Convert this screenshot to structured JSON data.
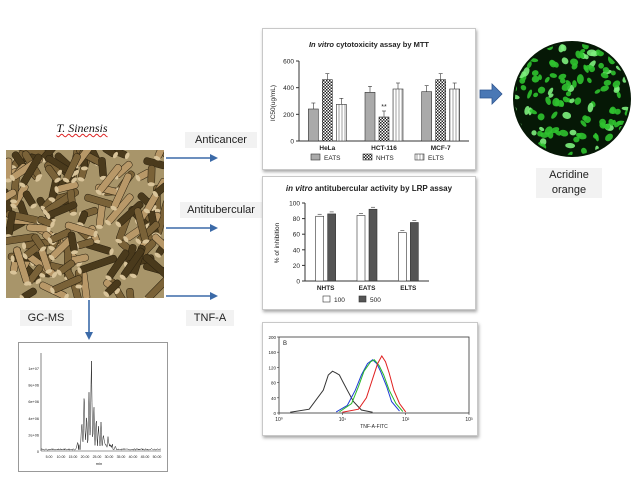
{
  "plant": {
    "name": "T. Sinensis",
    "colors": {
      "bg": "#a8956a",
      "stick_dark": "#4a3a1c",
      "stick_light": "#b89868",
      "stick_mid": "#7a6238"
    }
  },
  "labels": {
    "anticancer": "Anticancer",
    "antitubercular": "Antitubercular",
    "tnf": "TNF-A",
    "gcms": "GC-MS",
    "acridine_line1": "Acridine",
    "acridine_line2": "orange"
  },
  "arrow_color": "#3b6aa8",
  "cell_image": {
    "bg": "#061806",
    "cell": "#2fc22f",
    "cell_bright": "#7df07d"
  },
  "chart_data": [
    {
      "type": "bar",
      "title_italic": "In vitro",
      "title_rest": " cytotoxicity assay by MTT",
      "ylabel": "IC50(ug/mL)",
      "ylim": [
        0,
        600
      ],
      "yticks": [
        "0",
        "200",
        "400",
        "600"
      ],
      "categories": [
        "HeLa",
        "HCT-116",
        "MCF-7"
      ],
      "series": [
        {
          "name": "EATS",
          "values": [
            240,
            365,
            370
          ]
        },
        {
          "name": "NHTS",
          "values": [
            460,
            180,
            460
          ]
        },
        {
          "name": "ELTS",
          "values": [
            275,
            390,
            390
          ]
        }
      ],
      "annotation": "**"
    },
    {
      "type": "bar",
      "title_italic": "in vitro",
      "title_rest": " antitubercular activity by LRP assay",
      "ylabel": "% of inhibition",
      "ylim": [
        0,
        100
      ],
      "yticks": [
        "0",
        "20",
        "40",
        "60",
        "80",
        "100"
      ],
      "categories": [
        "NHTS",
        "EATS",
        "ELTS"
      ],
      "series": [
        {
          "name": "100",
          "values": [
            83,
            84,
            62
          ]
        },
        {
          "name": "500",
          "values": [
            86,
            92,
            75
          ]
        }
      ]
    },
    {
      "type": "line",
      "panel_label": "B",
      "xlabel": "TNF-A-FITC",
      "xscale": "log",
      "xlim": [
        1,
        1000
      ],
      "xticks": [
        "10⁰",
        "10¹",
        "10²",
        "10³"
      ],
      "ylim": [
        0,
        200
      ],
      "yticks": [
        "0",
        "40",
        "80",
        "120",
        "160",
        "200"
      ],
      "series": [
        {
          "color": "#333333",
          "x": [
            1.5,
            3,
            5,
            6,
            7,
            8,
            9,
            10,
            12,
            15,
            20,
            30
          ],
          "y": [
            2,
            10,
            60,
            100,
            110,
            105,
            100,
            85,
            60,
            30,
            8,
            2
          ]
        },
        {
          "color": "#1d3bd6",
          "x": [
            8,
            12,
            16,
            20,
            25,
            30,
            35,
            40,
            50,
            60,
            80
          ],
          "y": [
            3,
            20,
            60,
            100,
            130,
            140,
            130,
            110,
            70,
            30,
            5
          ]
        },
        {
          "color": "#28b828",
          "x": [
            9,
            14,
            18,
            22,
            28,
            32,
            38,
            45,
            55,
            70,
            90
          ],
          "y": [
            3,
            25,
            70,
            110,
            135,
            140,
            125,
            100,
            60,
            25,
            4
          ]
        },
        {
          "color": "#e02020",
          "x": [
            10,
            18,
            24,
            30,
            36,
            42,
            48,
            55,
            65,
            80,
            100
          ],
          "y": [
            2,
            10,
            40,
            90,
            130,
            150,
            135,
            105,
            60,
            25,
            3
          ]
        }
      ]
    },
    {
      "type": "line",
      "name_hint": "GC-MS chromatogram",
      "xlabel": "min",
      "yticks": [
        "1e+07",
        "8e+06",
        "6e+06",
        "4e+06",
        "2e+06",
        "0"
      ],
      "xticks": [
        "5.00",
        "10.00",
        "15.00",
        "20.00",
        "25.00",
        "30.00",
        "35.00",
        "40.00",
        "45.00",
        "50.00"
      ],
      "peaks": [
        {
          "x": 0.3,
          "y": 0.05
        },
        {
          "x": 0.34,
          "y": 0.25
        },
        {
          "x": 0.36,
          "y": 0.55
        },
        {
          "x": 0.38,
          "y": 0.35
        },
        {
          "x": 0.4,
          "y": 0.6
        },
        {
          "x": 0.42,
          "y": 0.95
        },
        {
          "x": 0.44,
          "y": 0.45
        },
        {
          "x": 0.46,
          "y": 0.3
        },
        {
          "x": 0.48,
          "y": 0.2
        },
        {
          "x": 0.5,
          "y": 0.25
        },
        {
          "x": 0.52,
          "y": 0.12
        },
        {
          "x": 0.56,
          "y": 0.08
        },
        {
          "x": 0.62,
          "y": 0.03
        }
      ]
    }
  ]
}
